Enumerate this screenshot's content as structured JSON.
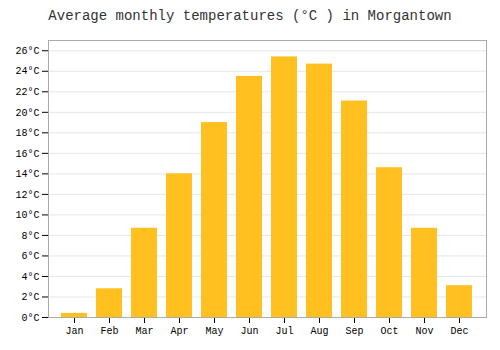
{
  "chart_data": {
    "type": "bar",
    "title": "Average monthly temperatures (°C ) in Morgantown",
    "categories": [
      "Jan",
      "Feb",
      "Mar",
      "Apr",
      "May",
      "Jun",
      "Jul",
      "Aug",
      "Sep",
      "Oct",
      "Nov",
      "Dec"
    ],
    "values": [
      0.4,
      2.8,
      8.7,
      14.0,
      19.0,
      23.5,
      25.4,
      24.7,
      21.1,
      14.6,
      8.7,
      3.1
    ],
    "color": "#FFC020",
    "ylim": [
      0,
      27
    ],
    "yticks": [
      {
        "value": 0,
        "label": "0°C"
      },
      {
        "value": 2,
        "label": "2°C"
      },
      {
        "value": 4,
        "label": "4°C"
      },
      {
        "value": 6,
        "label": "6°C"
      },
      {
        "value": 8,
        "label": "8°C"
      },
      {
        "value": 10,
        "label": "10°C"
      },
      {
        "value": 12,
        "label": "12°C"
      },
      {
        "value": 14,
        "label": "14°C"
      },
      {
        "value": 16,
        "label": "16°C"
      },
      {
        "value": 18,
        "label": "18°C"
      },
      {
        "value": 20,
        "label": "20°C"
      },
      {
        "value": 22,
        "label": "22°C"
      },
      {
        "value": 24,
        "label": "24°C"
      },
      {
        "value": 26,
        "label": "26°C"
      }
    ],
    "grid": true
  }
}
